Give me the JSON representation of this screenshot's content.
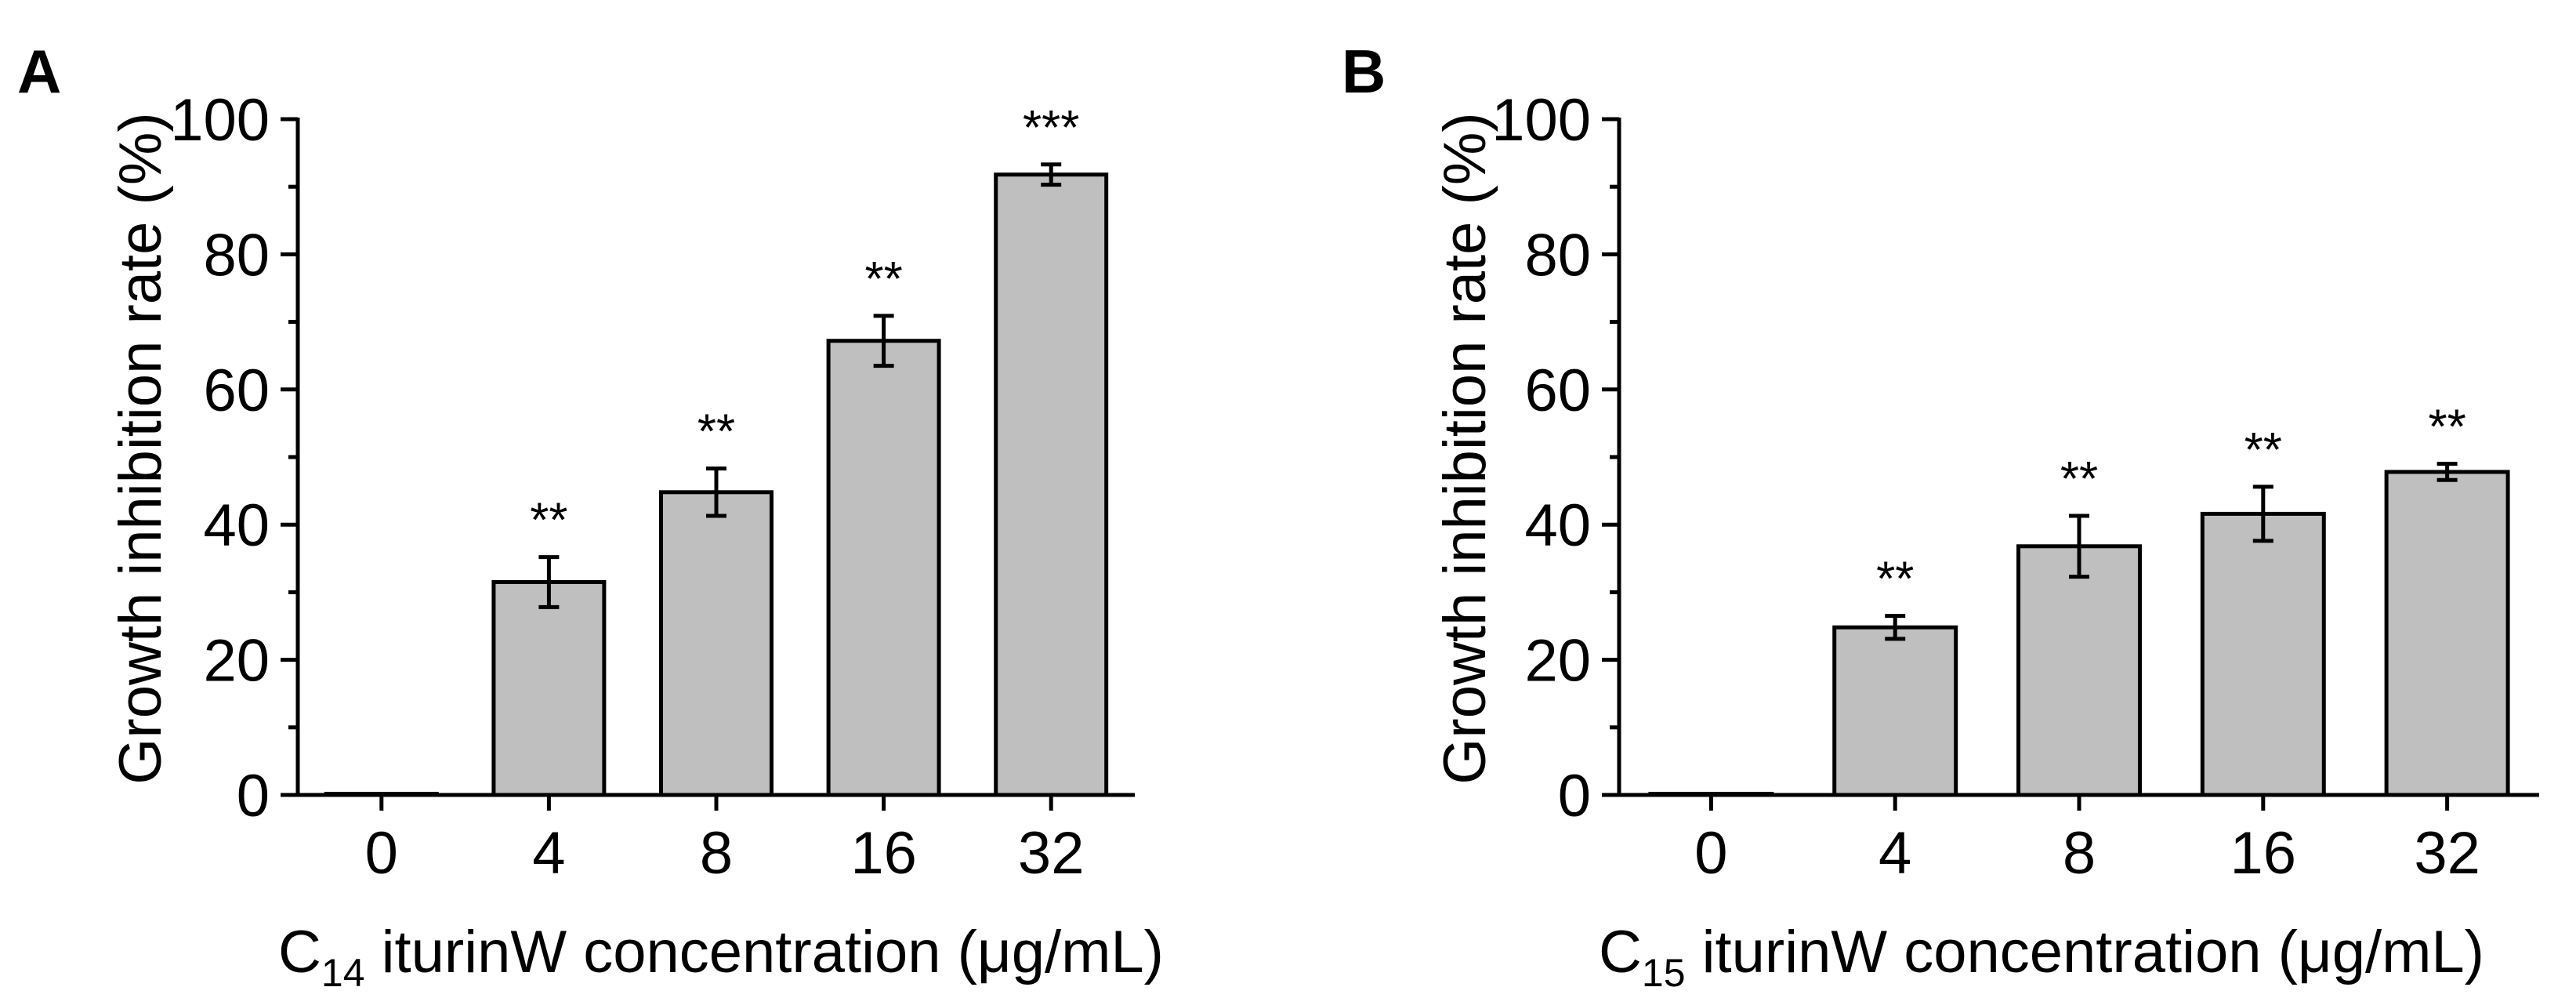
{
  "colors": {
    "bar_fill": "#bfbfbf",
    "axis": "#000000",
    "background": "#ffffff"
  },
  "chart_data": [
    {
      "panel": "A",
      "type": "bar",
      "categories": [
        "0",
        "4",
        "8",
        "16",
        "32"
      ],
      "values": [
        0,
        31.5,
        44.8,
        67.2,
        91.8
      ],
      "errors": [
        0,
        3.7,
        3.5,
        3.7,
        1.5
      ],
      "significance": [
        "",
        "**",
        "**",
        "**",
        "***"
      ],
      "ylabel": "Growth inhibition rate (%)",
      "xlabel": {
        "prefix": "C",
        "subscript": "14",
        "rest": " iturinW concentration (μg/mL)"
      },
      "ylim": [
        0,
        100
      ],
      "yticks": [
        "0",
        "20",
        "40",
        "60",
        "80",
        "100"
      ],
      "grid": false
    },
    {
      "panel": "B",
      "type": "bar",
      "categories": [
        "0",
        "4",
        "8",
        "16",
        "32"
      ],
      "values": [
        0,
        24.8,
        36.8,
        41.6,
        47.8
      ],
      "errors": [
        0,
        1.7,
        4.5,
        4.0,
        1.2
      ],
      "significance": [
        "",
        "**",
        "**",
        "**",
        "**"
      ],
      "ylabel": "Growth inhibition rate (%)",
      "xlabel": {
        "prefix": "C",
        "subscript": "15",
        "rest": " iturinW concentration (μg/mL)"
      },
      "ylim": [
        0,
        100
      ],
      "yticks": [
        "0",
        "20",
        "40",
        "60",
        "80",
        "100"
      ],
      "grid": false
    }
  ]
}
